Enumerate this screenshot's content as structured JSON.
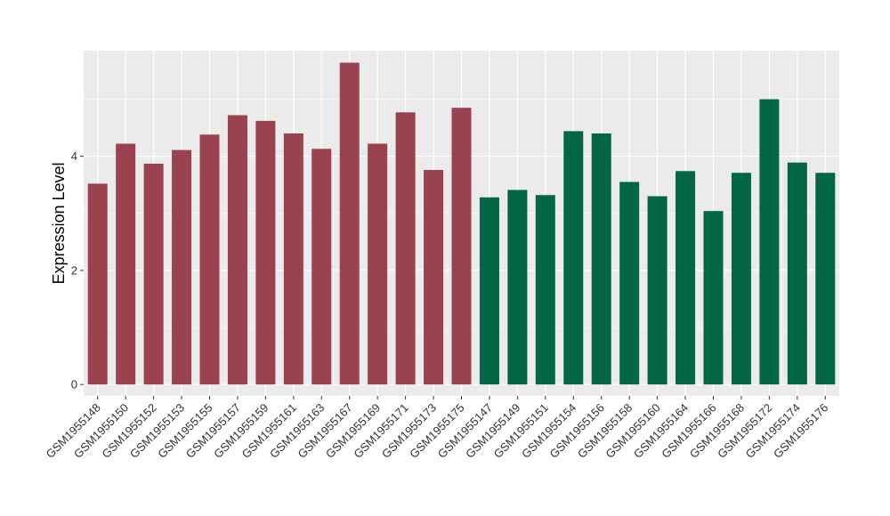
{
  "chart_data": {
    "type": "bar",
    "ylabel": "Expression Level",
    "xlabel": "",
    "ylim": [
      -0.2,
      5.85
    ],
    "yticks": [
      0,
      2,
      4
    ],
    "grid": true,
    "legend": "none",
    "background": "#EBEBEB",
    "gridline_color": "#FFFFFF",
    "categories": [
      "GSM1955148",
      "GSM1955150",
      "GSM1955152",
      "GSM1955153",
      "GSM1955155",
      "GSM1955157",
      "GSM1955159",
      "GSM1955161",
      "GSM1955163",
      "GSM1955167",
      "GSM1955169",
      "GSM1955171",
      "GSM1955173",
      "GSM1955175",
      "GSM1955147",
      "GSM1955149",
      "GSM1955151",
      "GSM1955154",
      "GSM1955156",
      "GSM1955158",
      "GSM1955160",
      "GSM1955164",
      "GSM1955166",
      "GSM1955168",
      "GSM1955172",
      "GSM1955174",
      "GSM1955176"
    ],
    "values": [
      3.52,
      4.22,
      3.87,
      4.11,
      4.38,
      4.72,
      4.62,
      4.4,
      4.13,
      5.64,
      4.22,
      4.77,
      3.76,
      4.85,
      3.28,
      3.41,
      3.32,
      4.44,
      4.4,
      3.55,
      3.3,
      3.74,
      3.04,
      3.71,
      5.0,
      3.89,
      3.71
    ],
    "bar_colors": [
      "#9A4250",
      "#9A4250",
      "#9A4250",
      "#9A4250",
      "#9A4250",
      "#9A4250",
      "#9A4250",
      "#9A4250",
      "#9A4250",
      "#9A4250",
      "#9A4250",
      "#9A4250",
      "#9A4250",
      "#9A4250",
      "#036647",
      "#036647",
      "#036647",
      "#036647",
      "#036647",
      "#036647",
      "#036647",
      "#036647",
      "#036647",
      "#036647",
      "#036647",
      "#036647",
      "#036647"
    ]
  }
}
